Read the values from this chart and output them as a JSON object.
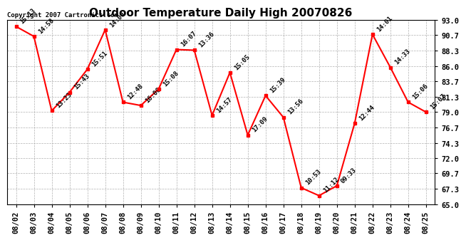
{
  "title": "Outdoor Temperature Daily High 20070826",
  "copyright": "Copyright 2007 Cartronics.com",
  "dates": [
    "08/02",
    "08/03",
    "08/04",
    "08/05",
    "08/06",
    "08/07",
    "08/08",
    "08/09",
    "08/10",
    "08/11",
    "08/12",
    "08/13",
    "08/14",
    "08/15",
    "08/16",
    "08/17",
    "08/18",
    "08/19",
    "08/20",
    "08/21",
    "08/22",
    "08/23",
    "08/24",
    "08/25"
  ],
  "values": [
    92.0,
    90.5,
    79.2,
    82.0,
    85.5,
    91.5,
    80.5,
    80.0,
    82.5,
    88.5,
    88.4,
    78.5,
    85.0,
    75.5,
    81.5,
    78.2,
    67.5,
    66.3,
    67.8,
    77.3,
    90.8,
    85.8,
    80.5,
    79.0
  ],
  "labels": [
    "15:13",
    "14:58",
    "13:23",
    "15:43",
    "15:51",
    "14:00",
    "12:48",
    "16:08",
    "15:08",
    "16:07",
    "13:36",
    "14:57",
    "15:05",
    "17:09",
    "15:39",
    "13:56",
    "10:53",
    "11:12",
    "09:33",
    "12:44",
    "14:01",
    "14:33",
    "15:06",
    "15:07"
  ],
  "ylim": [
    65.0,
    93.0
  ],
  "yticks": [
    65.0,
    67.3,
    69.7,
    72.0,
    74.3,
    76.7,
    79.0,
    81.3,
    83.7,
    86.0,
    88.3,
    90.7,
    93.0
  ],
  "line_color": "#ff0000",
  "marker_color": "#ff0000",
  "bg_color": "#ffffff",
  "grid_color": "#b0b0b0",
  "title_fontsize": 11,
  "label_fontsize": 6.5,
  "tick_fontsize": 7.5,
  "copyright_fontsize": 6.5
}
